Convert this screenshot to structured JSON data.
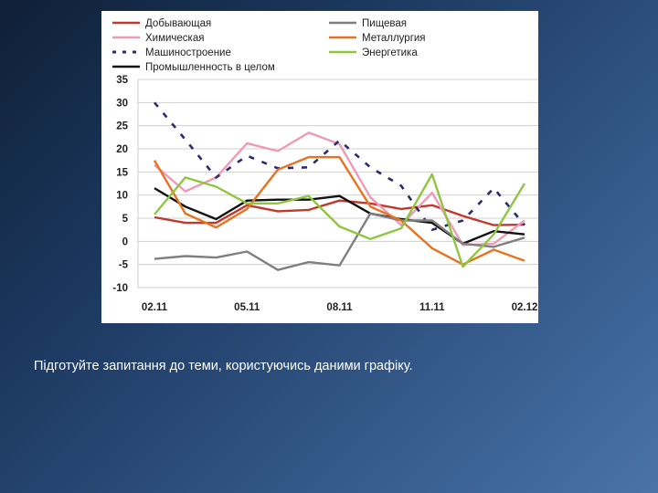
{
  "caption": "Підготуйте запитання до теми, користуючись даними графіку.",
  "chart_data": {
    "type": "line",
    "x": [
      "02.11",
      "03.11",
      "04.11",
      "05.11",
      "06.11",
      "07.11",
      "08.11",
      "09.11",
      "10.11",
      "11.11",
      "12.11",
      "01.12",
      "02.12"
    ],
    "xticks": [
      "02.11",
      "05.11",
      "08.11",
      "11.11",
      "02.12"
    ],
    "ylim": [
      -10,
      35
    ],
    "yticks": [
      "35",
      "30",
      "25",
      "20",
      "15",
      "10",
      "5",
      "0",
      "-5",
      "-10"
    ],
    "grid": true,
    "legend_position": "top",
    "series": [
      {
        "name": "Добывающая",
        "color": "#c0392b",
        "dash": false,
        "values": [
          5.2,
          4.0,
          4.0,
          7.8,
          6.5,
          6.8,
          8.8,
          8.2,
          7.0,
          7.8,
          5.5,
          3.5,
          3.6
        ]
      },
      {
        "name": "Химическая",
        "color": "#f09ab8",
        "dash": false,
        "values": [
          16.5,
          10.8,
          13.8,
          21.2,
          19.5,
          23.5,
          21.0,
          9.5,
          3.5,
          10.5,
          -0.8,
          -0.5,
          4.5
        ]
      },
      {
        "name": "Машиностроение",
        "color": "#2e2a6e",
        "dash": true,
        "values": [
          30.0,
          22.0,
          13.8,
          18.5,
          15.8,
          16.0,
          21.8,
          16.0,
          12.0,
          2.5,
          4.5,
          11.5,
          3.5
        ]
      },
      {
        "name": "Промышленность в целом",
        "color": "#111111",
        "dash": false,
        "values": [
          11.5,
          7.5,
          4.8,
          8.8,
          9.0,
          9.0,
          9.8,
          6.0,
          4.8,
          4.0,
          -0.5,
          2.2,
          1.5
        ]
      },
      {
        "name": "Пищевая",
        "color": "#7f7f7f",
        "dash": false,
        "values": [
          -3.8,
          -3.2,
          -3.5,
          -2.2,
          -6.2,
          -4.5,
          -5.2,
          6.0,
          4.5,
          4.5,
          -0.5,
          -1.2,
          0.8
        ]
      },
      {
        "name": "Металлургия",
        "color": "#e8731e",
        "dash": false,
        "values": [
          17.5,
          6.0,
          3.0,
          7.0,
          15.5,
          18.2,
          18.2,
          7.5,
          4.5,
          -1.5,
          -5.0,
          -1.8,
          -4.2
        ]
      },
      {
        "name": "Энергетика",
        "color": "#8ec63f",
        "dash": false,
        "values": [
          5.8,
          13.8,
          11.8,
          8.2,
          8.2,
          9.8,
          3.2,
          0.5,
          2.8,
          14.5,
          -5.5,
          1.5,
          12.5
        ]
      }
    ]
  }
}
